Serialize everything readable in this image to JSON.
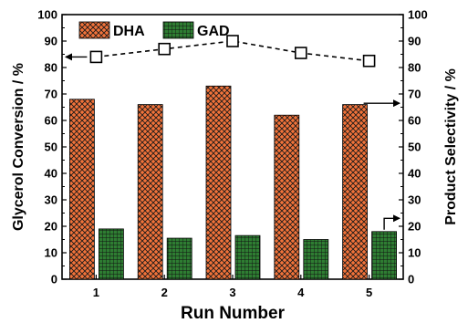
{
  "chart_data": {
    "type": "bar",
    "categories": [
      "1",
      "2",
      "3",
      "4",
      "5"
    ],
    "series": [
      {
        "name": "DHA",
        "values": [
          68,
          66,
          73,
          62,
          66
        ],
        "color": "#F2733A",
        "pattern": "crosshatch",
        "axis": "right"
      },
      {
        "name": "GAD",
        "values": [
          19,
          15.5,
          16.5,
          15,
          18
        ],
        "color": "#2E7D32",
        "pattern": "grid",
        "axis": "right"
      }
    ],
    "line_series": {
      "values": [
        84,
        87,
        90,
        85.5,
        82.5
      ],
      "axis": "left",
      "style": "dashed",
      "marker": "open-square"
    },
    "xlabel": "Run Number",
    "ylabel_left": "Glycerol Conversion / %",
    "ylabel_right": "Product Selectivity / %",
    "ylim": [
      0,
      100
    ],
    "yticks": [
      0,
      10,
      20,
      30,
      40,
      50,
      60,
      70,
      80,
      90,
      100
    ],
    "legend_placement": "top-left",
    "grid": false
  }
}
